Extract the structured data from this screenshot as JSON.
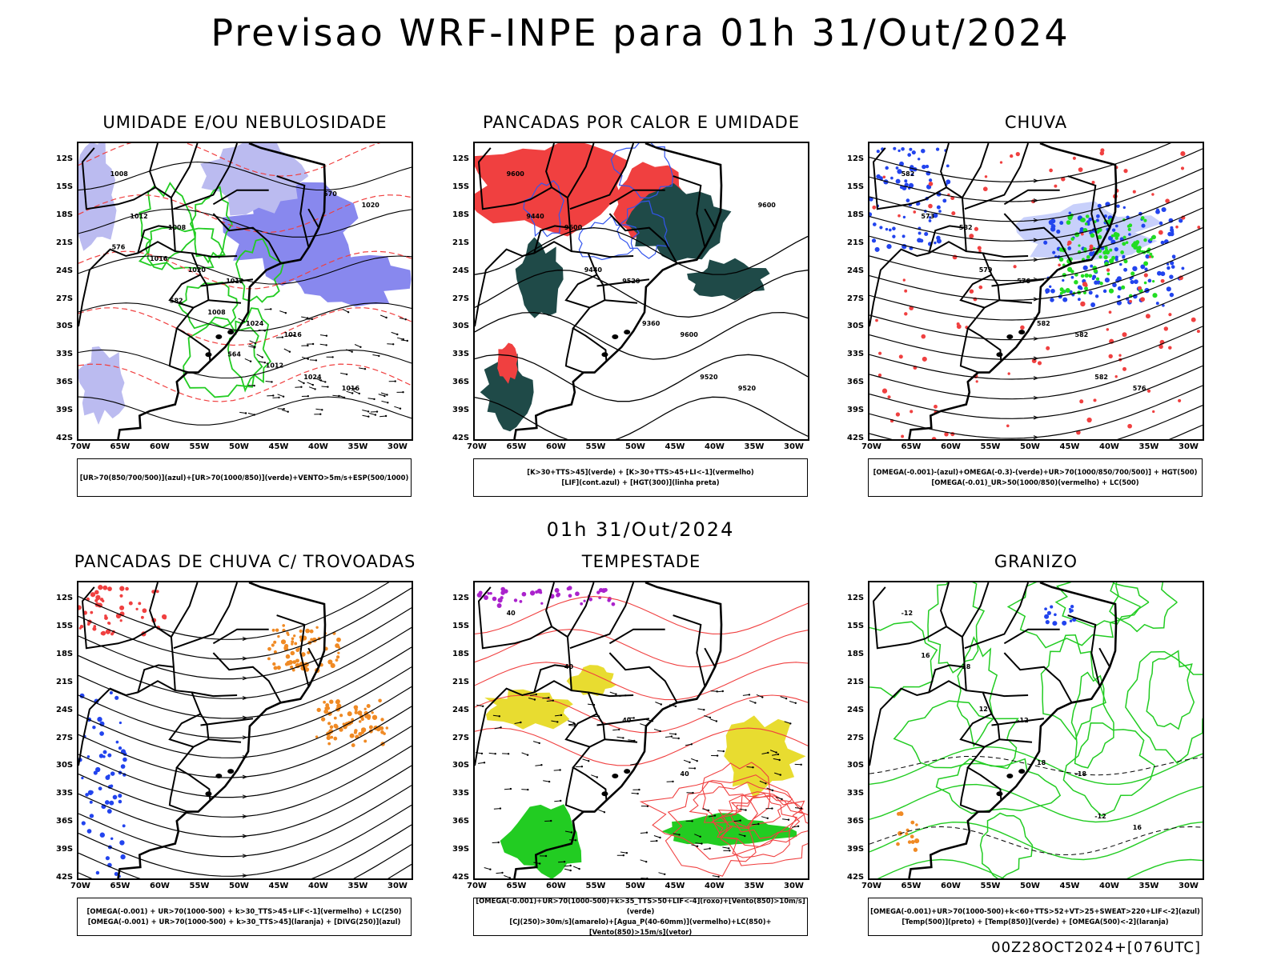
{
  "main_title": "Previsao WRF-INPE  para 01h 31/Out/2024",
  "mid_title": "01h 31/Out/2024",
  "footer_stamp": "00Z28OCT2024+[076UTC]",
  "axes": {
    "lat_labels": [
      "12S",
      "15S",
      "18S",
      "21S",
      "24S",
      "27S",
      "30S",
      "33S",
      "36S",
      "39S",
      "42S"
    ],
    "lon_labels": [
      "70W",
      "65W",
      "60W",
      "55W",
      "50W",
      "45W",
      "40W",
      "35W",
      "30W"
    ]
  },
  "colors": {
    "blue_fill": "#8888ee",
    "light_blue_fill": "#bbbbf0",
    "green_contour": "#22cc22",
    "red_fill": "#f04040",
    "dark_teal": "#1f4a48",
    "blue_pts": "#2244ee",
    "green_pts": "#22dd22",
    "orange": "#f08a24",
    "yellow": "#e8dc30",
    "green_fill": "#22cc22",
    "purple": "#aa22cc",
    "red_contour": "#f04040"
  },
  "panels": [
    {
      "id": "umidade",
      "title": "UMIDADE E/OU NEBULOSIDADE",
      "legend": [
        "[UR>70(850/700/500)](azul)+[UR>70(1000/850)](verde)+VENTO>5m/s+ESP(500/1000)"
      ],
      "contour_labels": [
        "1008",
        "1008",
        "1012",
        "1016",
        "1016",
        "1012",
        "1020",
        "1024",
        "1024",
        "1020",
        "1016",
        "1008",
        "1012",
        "570",
        "576",
        "582",
        "564"
      ]
    },
    {
      "id": "pancadas-calor",
      "title": "PANCADAS POR CALOR E UMIDADE",
      "legend": [
        "[K>30+TTS>45](verde) + [K>30+TTS>45+LI<-1](vermelho)",
        "[LIF](cont.azul) + [HGT(300)](linha preta)"
      ],
      "contour_labels": [
        "9600",
        "9600",
        "9520",
        "9600",
        "9520",
        "9440",
        "9440",
        "9360",
        "9520",
        "9600"
      ]
    },
    {
      "id": "chuva",
      "title": "CHUVA",
      "legend": [
        "[OMEGA(-0.001)-(azul)+OMEGA(-0.3)-(verde)+UR>70(1000/850/700/500)] + HGT(500)",
        "[OMEGA(-0.01)_UR>50(1000/850)(vermelho) + LC(500)"
      ],
      "contour_labels": [
        "582",
        "582",
        "576",
        "582",
        "576",
        "573",
        "579",
        "582",
        "582"
      ]
    },
    {
      "id": "pancadas-trovoadas",
      "title": "PANCADAS DE CHUVA C/ TROVOADAS",
      "legend": [
        "[OMEGA(-0.001) + UR>70(1000-500) + k>30_TTS>45+LIF<-1](vermelho) + LC(250)",
        "[OMEGA(-0.001) + UR>70(1000-500) + k>30_TTS>45](laranja) + [DIVG(250)](azul)"
      ],
      "contour_labels": []
    },
    {
      "id": "tempestade",
      "title": "TEMPESTADE",
      "legend": [
        "[OMEGA(-0.001)+UR>70(1000-500)+k>35_TTS>50+LIF<-4](roxo)+[Vento(850)>10m/s](verde)",
        "[CJ(250)>30m/s](amarelo)+[Agua_P(40-60mm)](vermelho)+LC(850)+[Vento(850)>15m/s](vetor)"
      ],
      "contour_labels": [
        "40",
        "40",
        "40",
        "40"
      ]
    },
    {
      "id": "granizo",
      "title": "GRANIZO",
      "legend": [
        "[OMEGA(-0.001)+UR>70(1000-500)+k<60+TTS>52+VT>25+SWEAT>220+LIF<-2](azul)",
        "[Temp(500)](preto) + [Temp(850)](verde) + [OMEGA(500)<-2](laranja)"
      ],
      "contour_labels": [
        "-12",
        "-18",
        "-12",
        "-18",
        "16",
        "16",
        "12",
        "18",
        "-12"
      ]
    }
  ]
}
